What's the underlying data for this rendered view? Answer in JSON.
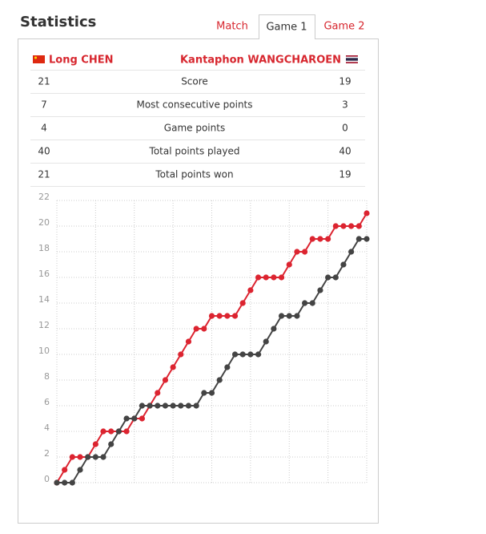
{
  "header": {
    "title": "Statistics"
  },
  "tabs": [
    "Match",
    "Game 1",
    "Game 2"
  ],
  "players": {
    "left": "Long CHEN",
    "right": "Kantaphon WANGCHAROEN"
  },
  "table": {
    "rows": [
      [
        21,
        "Score",
        19
      ],
      [
        7,
        "Most consecutive points",
        3
      ],
      [
        4,
        "Game points",
        0
      ],
      [
        40,
        "Total points played",
        40
      ],
      [
        21,
        "Total points won",
        19
      ]
    ]
  },
  "chart_data": {
    "type": "line",
    "series": [
      {
        "name": "Long CHEN",
        "color": "#dc2430",
        "values": [
          0,
          1,
          2,
          2,
          2,
          3,
          4,
          4,
          4,
          4,
          5,
          5,
          6,
          7,
          8,
          9,
          10,
          11,
          12,
          12,
          13,
          13,
          13,
          13,
          14,
          15,
          16,
          16,
          16,
          16,
          17,
          18,
          18,
          19,
          19,
          19,
          20,
          20,
          20,
          20,
          21
        ]
      },
      {
        "name": "Kantaphon WANGCHAROEN",
        "color": "#444444",
        "values": [
          0,
          0,
          0,
          1,
          2,
          2,
          2,
          3,
          4,
          5,
          5,
          6,
          6,
          6,
          6,
          6,
          6,
          6,
          6,
          7,
          7,
          8,
          9,
          10,
          10,
          10,
          10,
          11,
          12,
          13,
          13,
          13,
          14,
          14,
          15,
          16,
          16,
          17,
          18,
          19,
          19
        ]
      }
    ],
    "xlim": [
      0,
      40
    ],
    "xticks": [
      0,
      5,
      10,
      15,
      20,
      25,
      30,
      35,
      40
    ],
    "ylim": [
      0,
      22
    ],
    "yticks": [
      0,
      2,
      4,
      6,
      8,
      10,
      12,
      14,
      16,
      18,
      20,
      22
    ],
    "grid": true
  }
}
